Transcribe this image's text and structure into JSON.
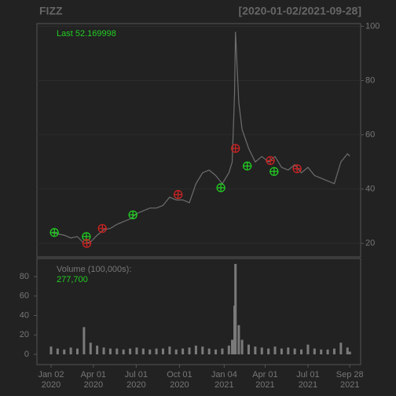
{
  "chart_data": [
    {
      "type": "line",
      "title": "FIZZ",
      "subtitle": "[2020-01-02/2021-09-28]",
      "annotation": "Last 52.169998",
      "x": [
        "2020-01-02",
        "2020-01-16",
        "2020-01-30",
        "2020-02-13",
        "2020-02-27",
        "2020-03-12",
        "2020-03-26",
        "2020-04-09",
        "2020-04-23",
        "2020-05-07",
        "2020-05-21",
        "2020-06-04",
        "2020-06-18",
        "2020-07-02",
        "2020-07-16",
        "2020-07-30",
        "2020-08-13",
        "2020-08-27",
        "2020-09-10",
        "2020-09-24",
        "2020-10-08",
        "2020-10-22",
        "2020-11-05",
        "2020-11-19",
        "2020-12-03",
        "2020-12-17",
        "2020-12-31",
        "2021-01-14",
        "2021-01-21",
        "2021-01-26",
        "2021-01-28",
        "2021-02-04",
        "2021-02-11",
        "2021-02-25",
        "2021-03-11",
        "2021-03-25",
        "2021-04-08",
        "2021-04-22",
        "2021-05-06",
        "2021-05-20",
        "2021-06-03",
        "2021-06-17",
        "2021-07-01",
        "2021-07-15",
        "2021-07-29",
        "2021-08-12",
        "2021-08-26",
        "2021-09-09",
        "2021-09-23",
        "2021-09-28"
      ],
      "series": [
        {
          "color": "#6e6e6e",
          "values": [
            24,
            23.5,
            23,
            22,
            22.5,
            20,
            20.5,
            23,
            25,
            25.5,
            27,
            28,
            29,
            31,
            32,
            33,
            33,
            34,
            37,
            36,
            36,
            35,
            42,
            46,
            47,
            45,
            42,
            46,
            50,
            75,
            98,
            72,
            62,
            55,
            50,
            52,
            50,
            52,
            48,
            47,
            49,
            46,
            48,
            45,
            44,
            43,
            42,
            50,
            53,
            52.17
          ]
        }
      ],
      "marker_series": [
        {
          "color": "#22cc22",
          "x": [
            "2020-01-09",
            "2020-03-17",
            "2020-06-24",
            "2020-12-28",
            "2021-02-22",
            "2021-04-20"
          ],
          "values": [
            24,
            22.5,
            30.5,
            40.5,
            48.5,
            46.5
          ]
        },
        {
          "color": "#cc2222",
          "x": [
            "2020-03-18",
            "2020-04-20",
            "2020-09-28",
            "2021-01-28",
            "2021-04-12",
            "2021-06-08"
          ],
          "values": [
            20,
            25.5,
            38,
            55,
            50.5,
            47.5
          ]
        }
      ],
      "xlim": [
        "2019-12-03",
        "2021-10-21"
      ],
      "ylim": [
        15,
        101
      ],
      "yticks": [
        20,
        40,
        60,
        80,
        100
      ],
      "grid": true
    },
    {
      "type": "bar",
      "title": "Volume (100,000s):",
      "annotation": "277,700",
      "color": "#7a7a7a",
      "x": [
        "2020-01-02",
        "2020-01-16",
        "2020-01-30",
        "2020-02-13",
        "2020-02-27",
        "2020-03-12",
        "2020-03-26",
        "2020-04-09",
        "2020-04-23",
        "2020-05-07",
        "2020-05-21",
        "2020-06-04",
        "2020-06-18",
        "2020-07-02",
        "2020-07-16",
        "2020-07-30",
        "2020-08-13",
        "2020-08-27",
        "2020-09-10",
        "2020-09-24",
        "2020-10-08",
        "2020-10-22",
        "2020-11-05",
        "2020-11-19",
        "2020-12-03",
        "2020-12-17",
        "2020-12-31",
        "2021-01-14",
        "2021-01-21",
        "2021-01-26",
        "2021-01-28",
        "2021-02-04",
        "2021-02-11",
        "2021-02-25",
        "2021-03-11",
        "2021-03-25",
        "2021-04-08",
        "2021-04-22",
        "2021-05-06",
        "2021-05-20",
        "2021-06-03",
        "2021-06-17",
        "2021-07-01",
        "2021-07-15",
        "2021-07-29",
        "2021-08-12",
        "2021-08-26",
        "2021-09-09",
        "2021-09-23",
        "2021-09-28"
      ],
      "values": [
        8,
        6,
        5,
        7,
        6,
        28,
        12,
        9,
        7,
        6,
        6,
        5,
        6,
        7,
        6,
        5,
        6,
        6,
        8,
        5,
        6,
        7,
        9,
        8,
        6,
        5,
        6,
        9,
        15,
        50,
        93,
        30,
        15,
        10,
        8,
        7,
        6,
        8,
        6,
        7,
        6,
        5,
        10,
        6,
        5,
        5,
        6,
        12,
        7,
        2.777
      ],
      "xlim": [
        "2019-12-03",
        "2021-10-21"
      ],
      "ylim": [
        -10.5,
        98.6
      ],
      "yticks": [
        0,
        20,
        40,
        60,
        80
      ],
      "xticks": [
        {
          "value": "2020-01-02",
          "label": "Jan 02 2020"
        },
        {
          "value": "2020-04-01",
          "label": "Apr 01 2020"
        },
        {
          "value": "2020-07-01",
          "label": "Jul 01 2020"
        },
        {
          "value": "2020-10-01",
          "label": "Oct 01 2020"
        },
        {
          "value": "2021-01-04",
          "label": "Jan 04 2021"
        },
        {
          "value": "2021-04-01",
          "label": "Apr 01 2021"
        },
        {
          "value": "2021-07-01",
          "label": "Jul 01 2021"
        },
        {
          "value": "2021-09-28",
          "label": "Sep 28 2021"
        }
      ]
    }
  ]
}
